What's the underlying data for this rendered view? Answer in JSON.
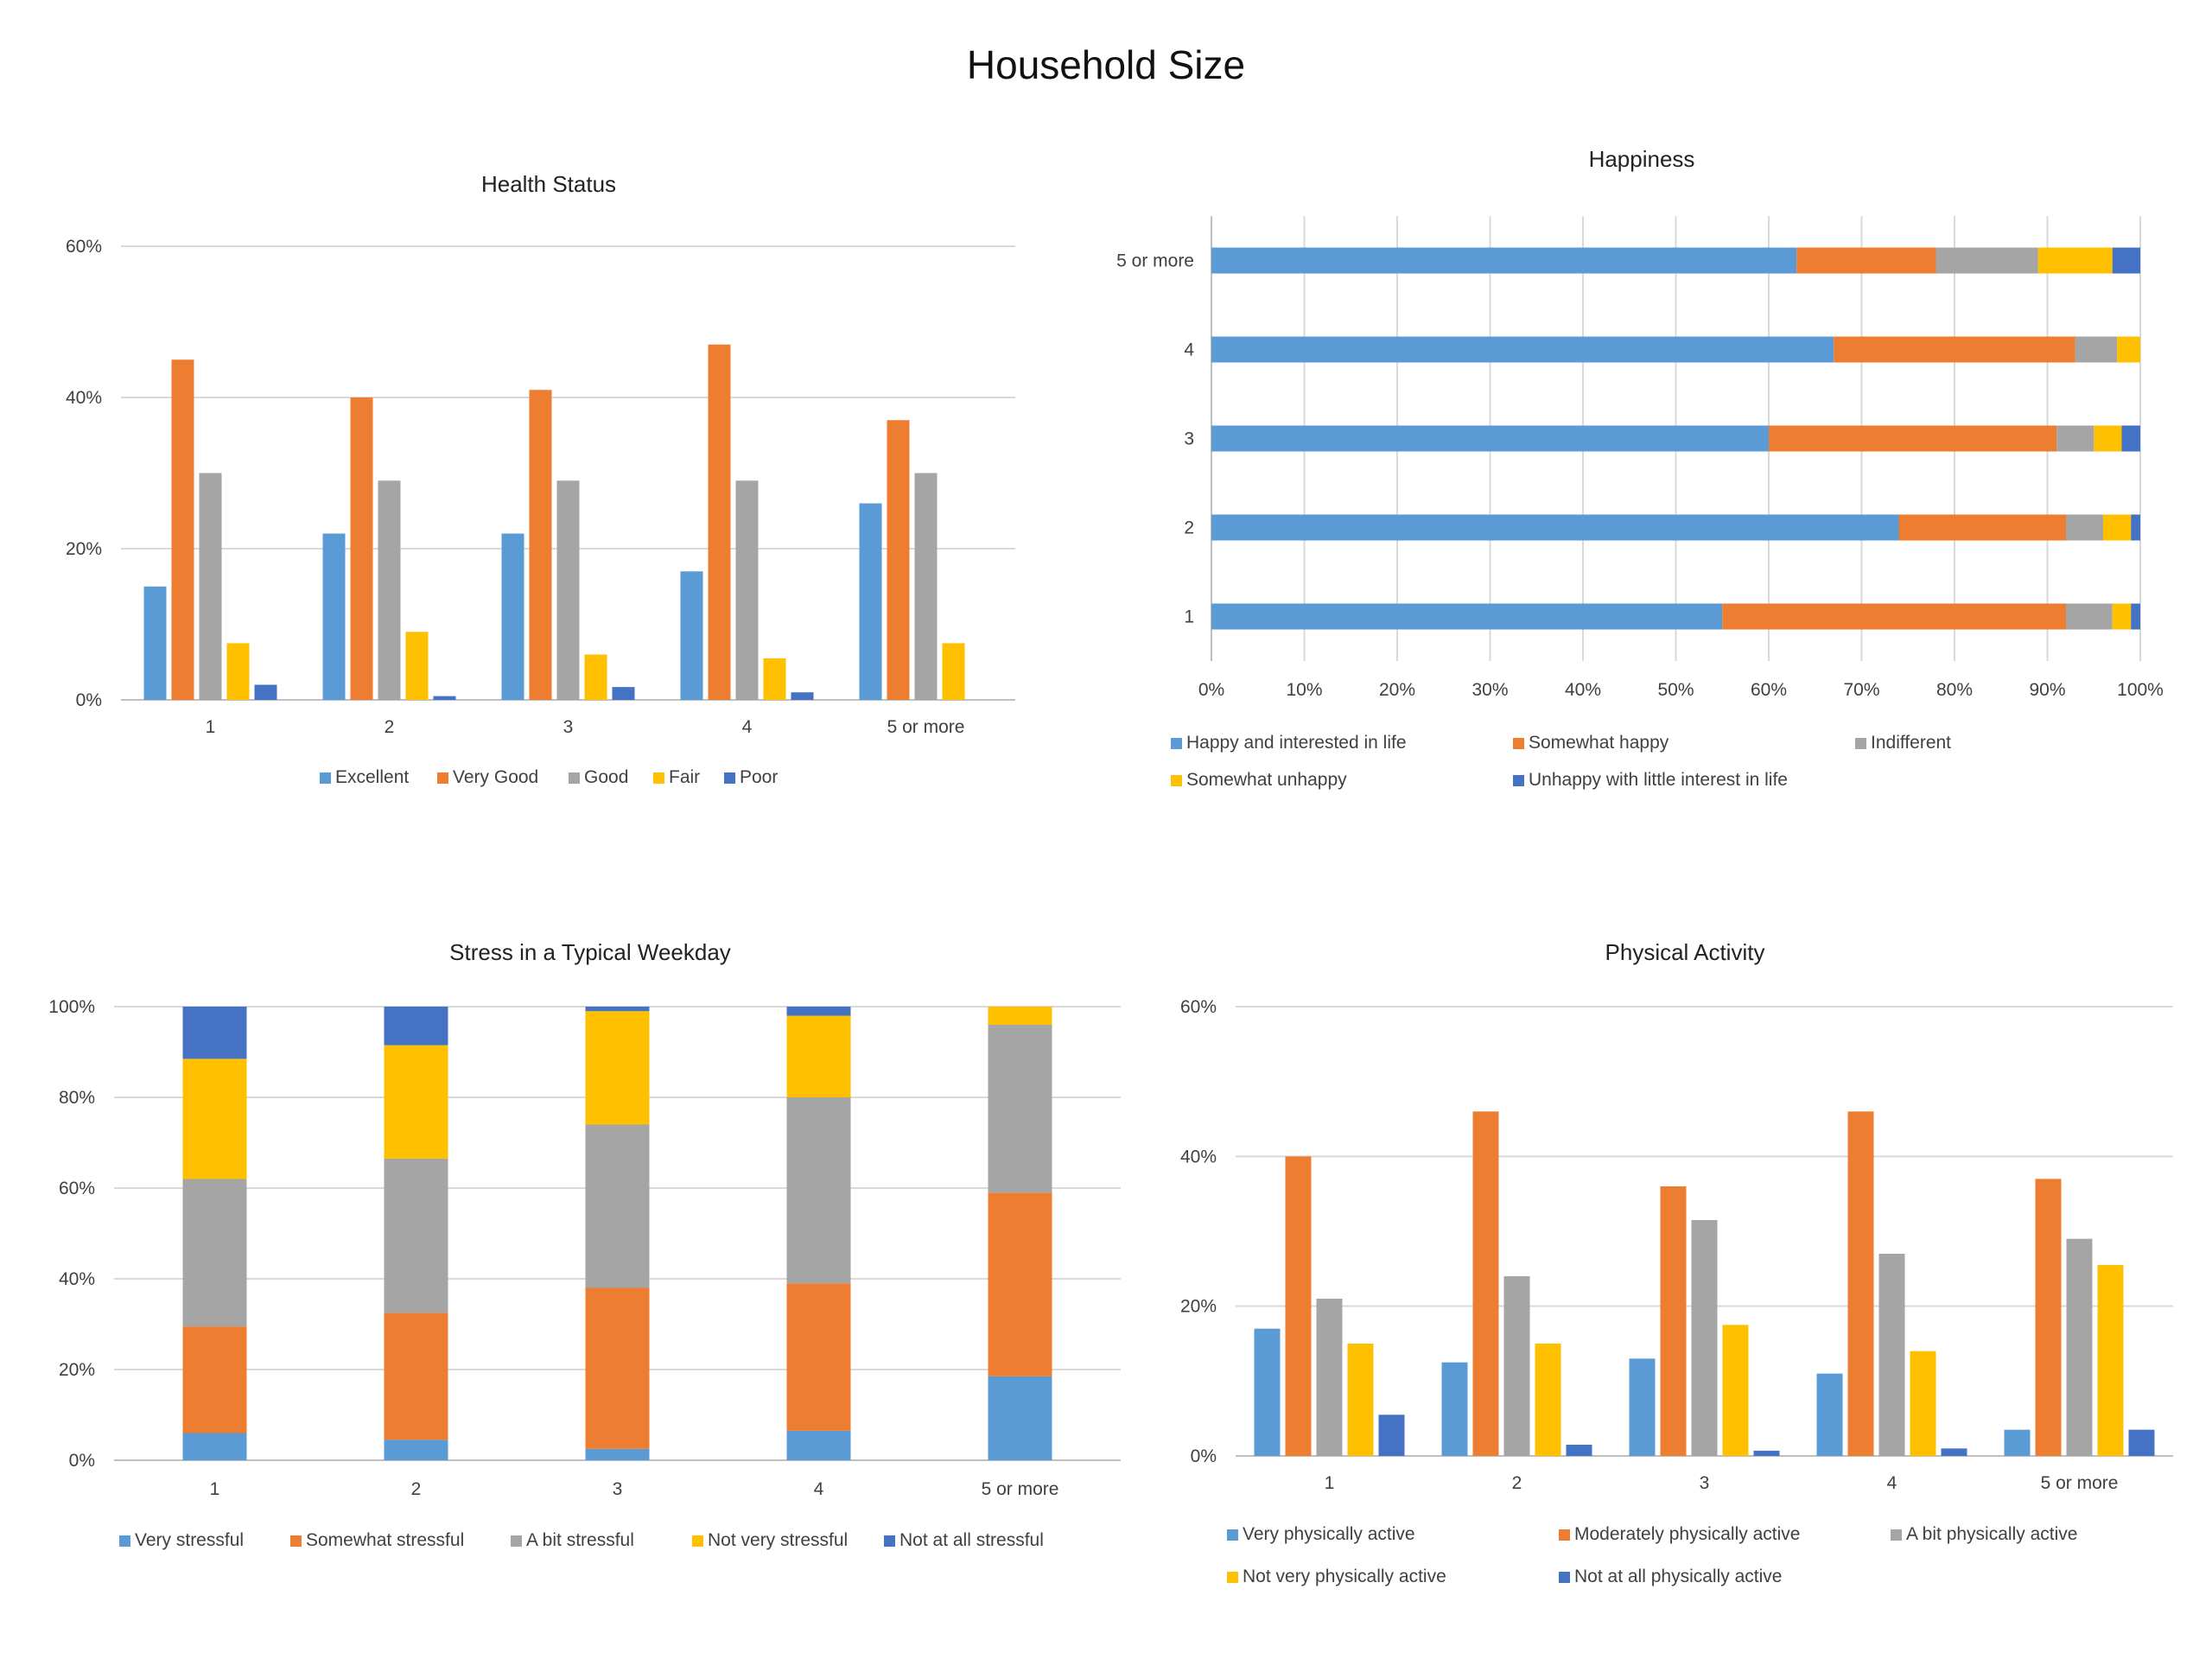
{
  "page_title": "Household Size",
  "chart_data": [
    {
      "id": "health",
      "type": "bar",
      "title": "Health Status",
      "xlabel": "",
      "ylabel": "",
      "ylim": [
        0,
        0.6
      ],
      "yticks": [
        0,
        0.2,
        0.4,
        0.6
      ],
      "ytick_labels": [
        "0%",
        "20%",
        "40%",
        "60%"
      ],
      "grid": true,
      "legend_position": "bottom",
      "categories": [
        "1",
        "2",
        "3",
        "4",
        "5 or more"
      ],
      "series": [
        {
          "name": "Excellent",
          "color": "#5B9BD5",
          "values": [
            0.15,
            0.22,
            0.22,
            0.17,
            0.26
          ]
        },
        {
          "name": "Very Good",
          "color": "#ED7D31",
          "values": [
            0.45,
            0.4,
            0.41,
            0.47,
            0.37
          ]
        },
        {
          "name": "Good",
          "color": "#A5A5A5",
          "values": [
            0.3,
            0.29,
            0.29,
            0.29,
            0.3
          ]
        },
        {
          "name": "Fair",
          "color": "#FFC000",
          "values": [
            0.075,
            0.09,
            0.06,
            0.055,
            0.075
          ]
        },
        {
          "name": "Poor",
          "color": "#4472C4",
          "values": [
            0.02,
            0.005,
            0.017,
            0.01,
            0.0
          ]
        }
      ]
    },
    {
      "id": "happiness",
      "type": "bar",
      "orientation": "horizontal",
      "stacked": "percent",
      "title": "Happiness",
      "xlabel": "",
      "ylabel": "",
      "xlim": [
        0,
        1
      ],
      "xticks": [
        0,
        0.1,
        0.2,
        0.3,
        0.4,
        0.5,
        0.6,
        0.7,
        0.8,
        0.9,
        1.0
      ],
      "xtick_labels": [
        "0%",
        "10%",
        "20%",
        "30%",
        "40%",
        "50%",
        "60%",
        "70%",
        "80%",
        "90%",
        "100%"
      ],
      "grid": true,
      "legend_position": "bottom",
      "categories": [
        "1",
        "2",
        "3",
        "4",
        "5 or more"
      ],
      "series": [
        {
          "name": "Happy and interested in life",
          "color": "#5B9BD5",
          "values": [
            0.55,
            0.74,
            0.6,
            0.67,
            0.63
          ]
        },
        {
          "name": "Somewhat happy",
          "color": "#ED7D31",
          "values": [
            0.37,
            0.18,
            0.31,
            0.26,
            0.15
          ]
        },
        {
          "name": "Indifferent",
          "color": "#A5A5A5",
          "values": [
            0.05,
            0.04,
            0.04,
            0.045,
            0.11
          ]
        },
        {
          "name": "Somewhat unhappy",
          "color": "#FFC000",
          "values": [
            0.02,
            0.03,
            0.03,
            0.025,
            0.08
          ]
        },
        {
          "name": "Unhappy with little interest in life",
          "color": "#4472C4",
          "values": [
            0.01,
            0.01,
            0.02,
            0.0,
            0.03
          ]
        }
      ]
    },
    {
      "id": "stress",
      "type": "bar",
      "stacked": "percent",
      "title": "Stress in a Typical Weekday",
      "xlabel": "",
      "ylabel": "",
      "ylim": [
        0,
        1
      ],
      "yticks": [
        0,
        0.2,
        0.4,
        0.6,
        0.8,
        1.0
      ],
      "ytick_labels": [
        "0%",
        "20%",
        "40%",
        "60%",
        "80%",
        "100%"
      ],
      "grid": true,
      "legend_position": "bottom",
      "categories": [
        "1",
        "2",
        "3",
        "4",
        "5 or more"
      ],
      "series": [
        {
          "name": "Very stressful",
          "color": "#5B9BD5",
          "values": [
            0.06,
            0.045,
            0.025,
            0.065,
            0.185
          ]
        },
        {
          "name": "Somewhat stressful",
          "color": "#ED7D31",
          "values": [
            0.235,
            0.28,
            0.355,
            0.325,
            0.405
          ]
        },
        {
          "name": "A bit stressful",
          "color": "#A5A5A5",
          "values": [
            0.325,
            0.34,
            0.36,
            0.41,
            0.37
          ]
        },
        {
          "name": "Not very stressful",
          "color": "#FFC000",
          "values": [
            0.265,
            0.25,
            0.25,
            0.18,
            0.04
          ]
        },
        {
          "name": "Not at all stressful",
          "color": "#4472C4",
          "values": [
            0.115,
            0.085,
            0.01,
            0.02,
            0.0
          ]
        }
      ]
    },
    {
      "id": "activity",
      "type": "bar",
      "title": "Physical Activity",
      "xlabel": "",
      "ylabel": "",
      "ylim": [
        0,
        0.6
      ],
      "yticks": [
        0,
        0.2,
        0.4,
        0.6
      ],
      "ytick_labels": [
        "0%",
        "20%",
        "40%",
        "60%"
      ],
      "grid": true,
      "legend_position": "bottom",
      "categories": [
        "1",
        "2",
        "3",
        "4",
        "5 or more"
      ],
      "series": [
        {
          "name": "Very physically active",
          "color": "#5B9BD5",
          "values": [
            0.17,
            0.125,
            0.13,
            0.11,
            0.035
          ]
        },
        {
          "name": "Moderately physically active",
          "color": "#ED7D31",
          "values": [
            0.4,
            0.46,
            0.36,
            0.46,
            0.37
          ]
        },
        {
          "name": "A bit physically active",
          "color": "#A5A5A5",
          "values": [
            0.21,
            0.24,
            0.315,
            0.27,
            0.29
          ]
        },
        {
          "name": "Not very physically active",
          "color": "#FFC000",
          "values": [
            0.15,
            0.15,
            0.175,
            0.14,
            0.255
          ]
        },
        {
          "name": "Not at all physically active",
          "color": "#4472C4",
          "values": [
            0.055,
            0.015,
            0.007,
            0.01,
            0.035
          ]
        }
      ]
    }
  ]
}
